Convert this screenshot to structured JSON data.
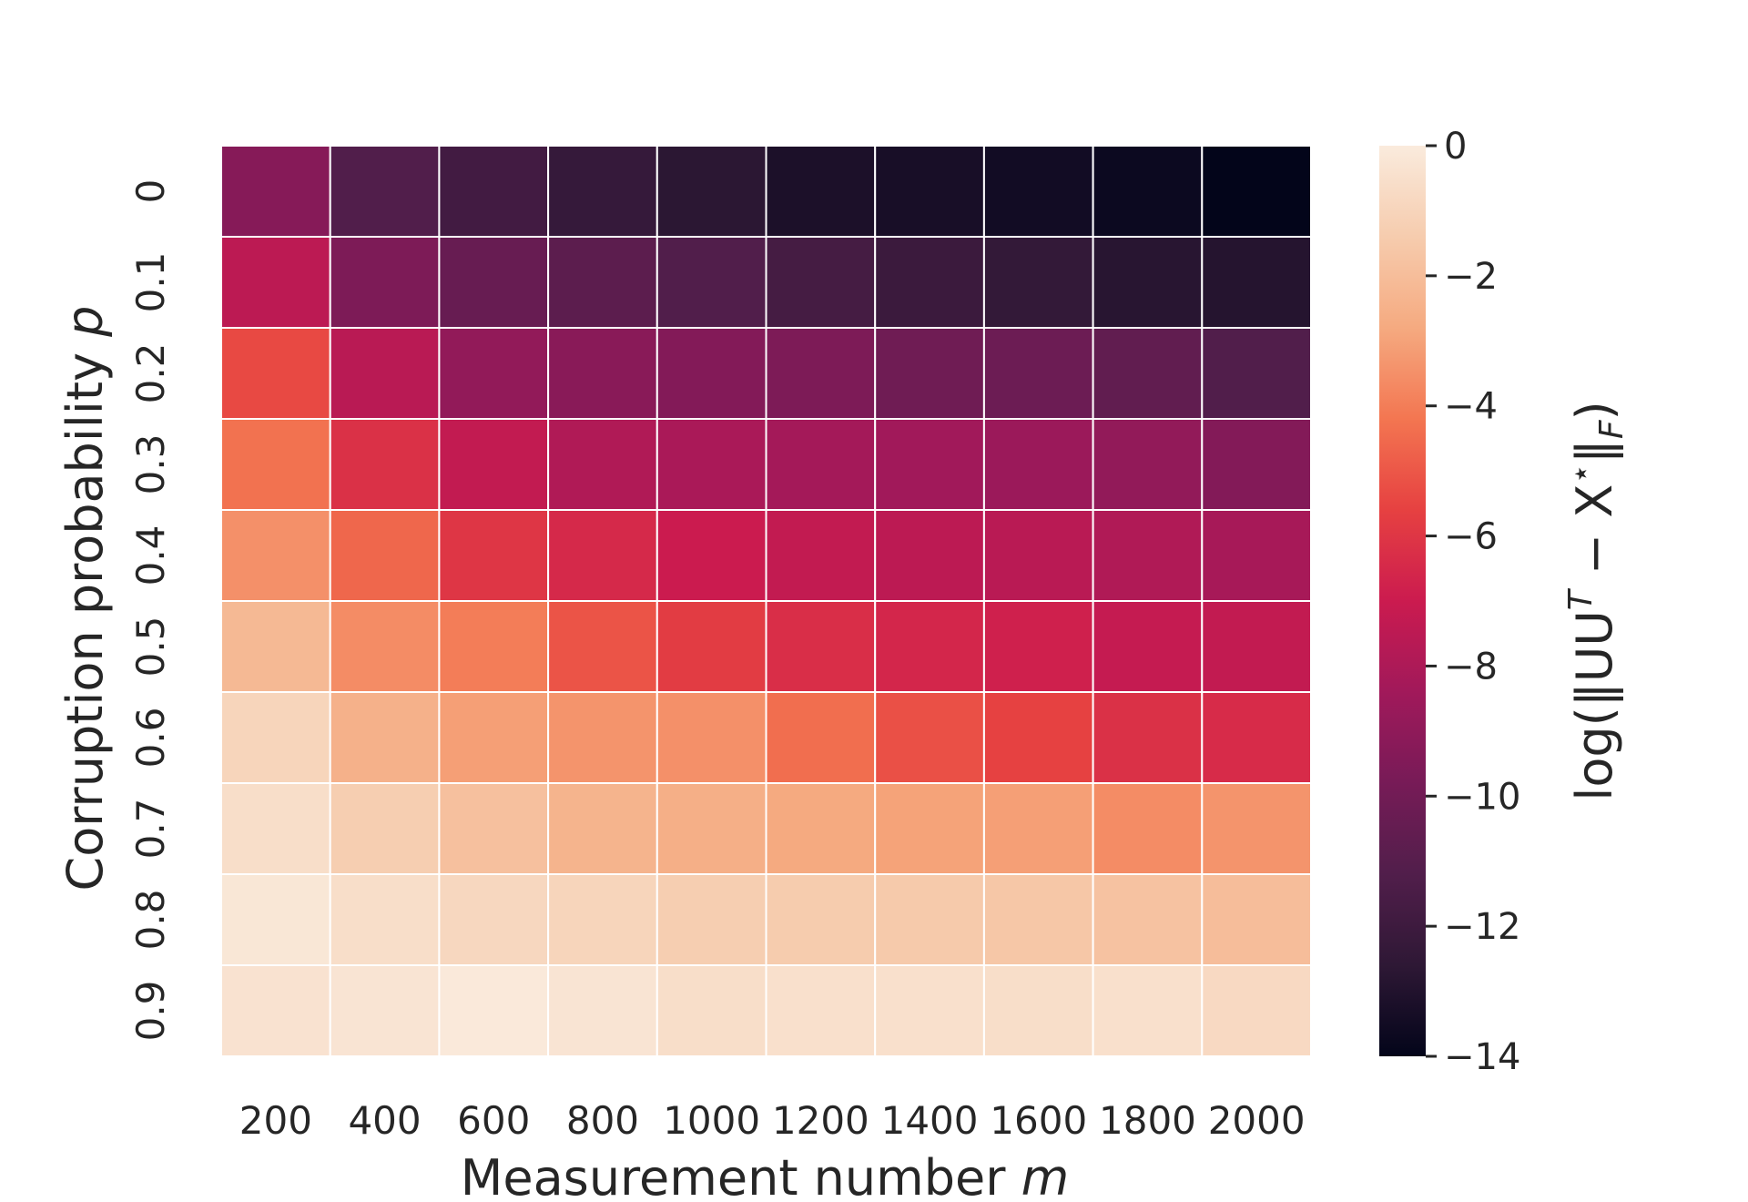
{
  "chart_data": {
    "type": "heatmap",
    "title": "",
    "xlabel": "Measurement number",
    "xlabel_var": "m",
    "ylabel": "Corruption probability",
    "ylabel_var": "p",
    "x_categories": [
      "200",
      "400",
      "600",
      "800",
      "1000",
      "1200",
      "1400",
      "1600",
      "1800",
      "2000"
    ],
    "y_categories": [
      "0",
      "0.1",
      "0.2",
      "0.3",
      "0.4",
      "0.5",
      "0.6",
      "0.7",
      "0.8",
      "0.9"
    ],
    "values": [
      [
        -9.3,
        -11.2,
        -11.8,
        -12.3,
        -12.7,
        -13.2,
        -13.3,
        -13.5,
        -13.7,
        -14.0
      ],
      [
        -7.5,
        -9.6,
        -10.4,
        -10.8,
        -11.2,
        -11.7,
        -12.1,
        -12.4,
        -12.8,
        -12.9
      ],
      [
        -5.4,
        -7.6,
        -8.9,
        -9.2,
        -9.4,
        -9.6,
        -10.1,
        -10.2,
        -10.6,
        -11.2
      ],
      [
        -4.3,
        -6.2,
        -7.3,
        -7.9,
        -8.1,
        -8.3,
        -8.4,
        -8.6,
        -8.9,
        -9.4
      ],
      [
        -3.5,
        -4.6,
        -6.0,
        -6.5,
        -7.0,
        -7.3,
        -7.5,
        -7.6,
        -7.9,
        -8.2
      ],
      [
        -2.2,
        -3.6,
        -4.0,
        -5.1,
        -5.8,
        -6.3,
        -6.6,
        -6.8,
        -7.2,
        -7.3
      ],
      [
        -1.0,
        -2.5,
        -3.1,
        -3.4,
        -3.5,
        -4.4,
        -5.2,
        -5.6,
        -6.2,
        -6.4
      ],
      [
        -0.6,
        -1.3,
        -1.9,
        -2.4,
        -2.6,
        -2.8,
        -3.0,
        -3.1,
        -3.6,
        -3.4
      ],
      [
        -0.2,
        -0.6,
        -0.9,
        -1.0,
        -1.3,
        -1.4,
        -1.5,
        -1.6,
        -1.8,
        -2.0
      ],
      [
        -0.4,
        -0.3,
        -0.1,
        -0.3,
        -0.6,
        -0.5,
        -0.5,
        -0.6,
        -0.5,
        -0.8
      ]
    ],
    "colorbar": {
      "label": "log(‖UU",
      "label_sup": "T",
      "label_mid": " − X",
      "label_star": "⋆",
      "label_end": "‖",
      "label_sub": "F",
      "label_close": ")",
      "min": -14,
      "max": 0,
      "ticks": [
        "0",
        "−2",
        "−4",
        "−6",
        "−8",
        "−10",
        "−12",
        "−14"
      ],
      "tick_values": [
        0,
        -2,
        -4,
        -6,
        -8,
        -10,
        -12,
        -14
      ]
    },
    "colormap": "rocket",
    "grid": true
  }
}
